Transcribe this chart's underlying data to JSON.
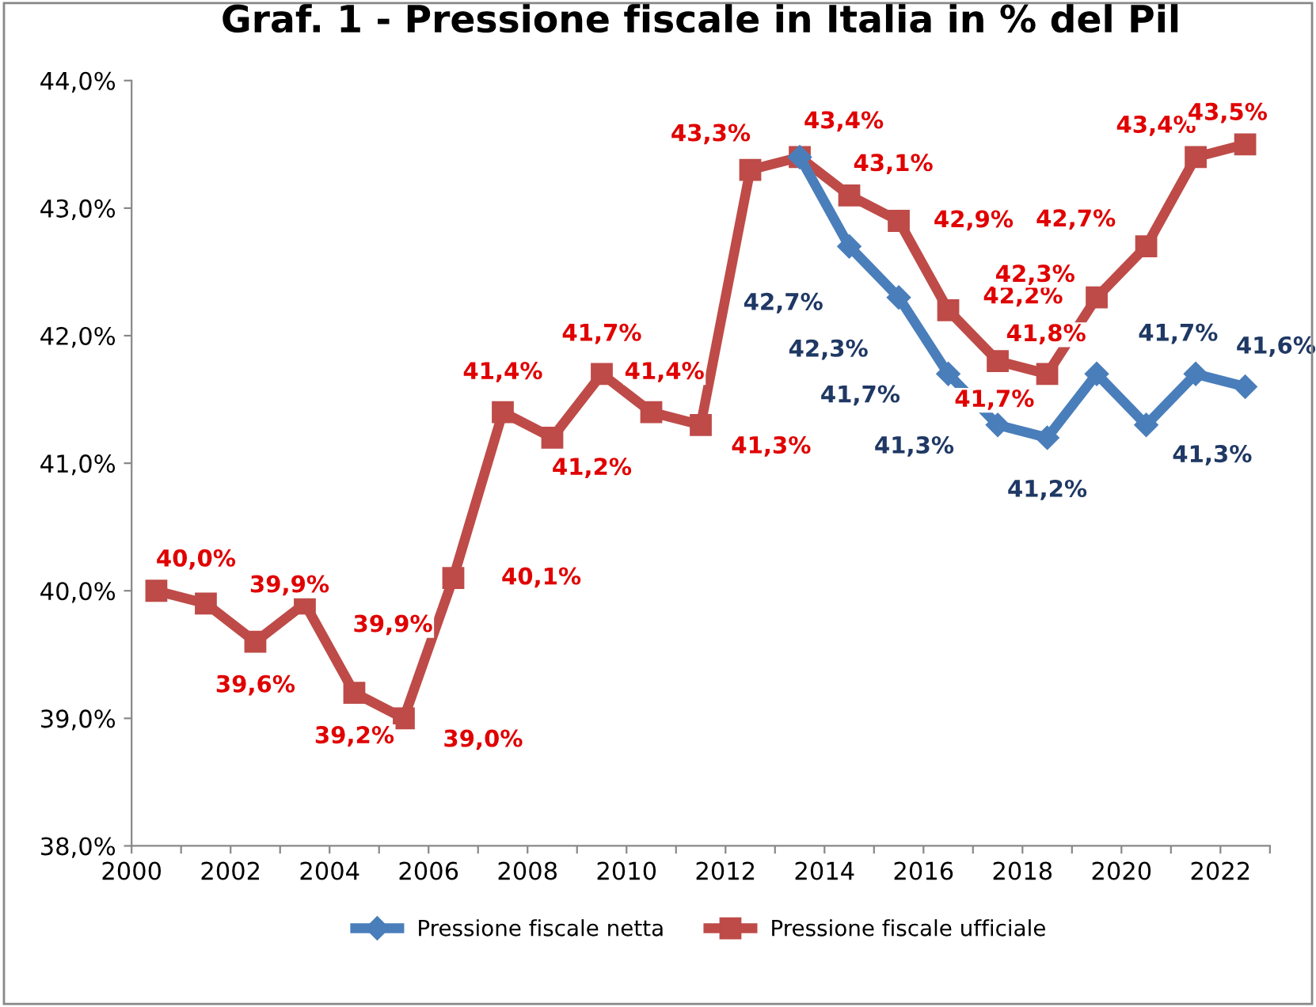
{
  "chart_data": {
    "type": "line",
    "title": "Graf. 1 - Pressione fiscale in Italia in % del Pil",
    "xlim": [
      2000,
      2023
    ],
    "xticks": [
      2000,
      {
        "value": 2001,
        "label": null
      },
      2002,
      {
        "value": 2003,
        "label": null
      },
      2004,
      {
        "value": 2005,
        "label": null
      },
      2006,
      {
        "value": 2007,
        "label": null
      },
      2008,
      {
        "value": 2009,
        "label": null
      },
      2010,
      {
        "value": 2011,
        "label": null
      },
      2012,
      {
        "value": 2013,
        "label": null
      },
      2014,
      {
        "value": 2015,
        "label": null
      },
      2016,
      {
        "value": 2017,
        "label": null
      },
      2018,
      {
        "value": 2019,
        "label": null
      },
      2020,
      {
        "value": 2021,
        "label": null
      },
      2022,
      {
        "value": 2023,
        "label": null
      }
    ],
    "ylim": [
      38,
      44
    ],
    "yticks": [
      {
        "value": 38,
        "label": "38,0%"
      },
      {
        "value": 39,
        "label": "39,0%"
      },
      {
        "value": 40,
        "label": "40,0%"
      },
      {
        "value": 41,
        "label": "41,0%"
      },
      {
        "value": 42,
        "label": "42,0%"
      },
      {
        "value": 43,
        "label": "43,0%"
      },
      {
        "value": 44,
        "label": "44,0%"
      }
    ],
    "grid": false,
    "legend": "bottom",
    "line_style": "solid",
    "series": [
      {
        "name": "Pressione fiscale netta",
        "color": "#4a7ebb",
        "marker": "diamond",
        "x": [
          2013.5,
          2014.5,
          2015.5,
          2016.5,
          2017.5,
          2018.5,
          2019.5,
          2020.5,
          2021.5,
          2022.5
        ],
        "values": [
          43.4,
          42.7,
          42.3,
          41.7,
          41.3,
          41.2,
          41.7,
          41.3,
          41.7,
          41.6
        ],
        "value_labels": [
          null,
          "42,7%",
          "42,3%",
          "41,7%",
          "41,3%",
          "41,2%",
          null,
          "41,3%",
          "41,7%",
          "41,6%"
        ]
      },
      {
        "name": "Pressione fiscale ufficiale",
        "color": "#be4b48",
        "marker": "square",
        "x": [
          2000.5,
          2001.5,
          2002.5,
          2003.5,
          2004.5,
          2005.5,
          2006.5,
          2007.5,
          2008.5,
          2009.5,
          2010.5,
          2011.5,
          2012.5,
          2013.5,
          2014.5,
          2015.5,
          2016.5,
          2017.5,
          2018.5,
          2019.5,
          2020.5,
          2021.5,
          2022.5
        ],
        "values": [
          40.0,
          39.9,
          39.6,
          39.9,
          39.2,
          39.0,
          40.1,
          41.4,
          41.2,
          41.7,
          41.4,
          41.3,
          43.3,
          43.4,
          43.1,
          42.9,
          42.2,
          41.8,
          41.7,
          42.3,
          42.7,
          43.4,
          43.5
        ],
        "value_labels": [
          "40,0%",
          "39,9%",
          "39,6%",
          "39,9%",
          "39,2%",
          "39,0%",
          "40,1%",
          "41,4%",
          "41,2%",
          "41,7%",
          "41,4%",
          "41,3%",
          "43,3%",
          "43,4%",
          "43,1%",
          "42,9%",
          "42,2%",
          "41,8%",
          "41,7%",
          "42,3%",
          "42,7%",
          "43,4%",
          "43,5%"
        ]
      }
    ]
  }
}
